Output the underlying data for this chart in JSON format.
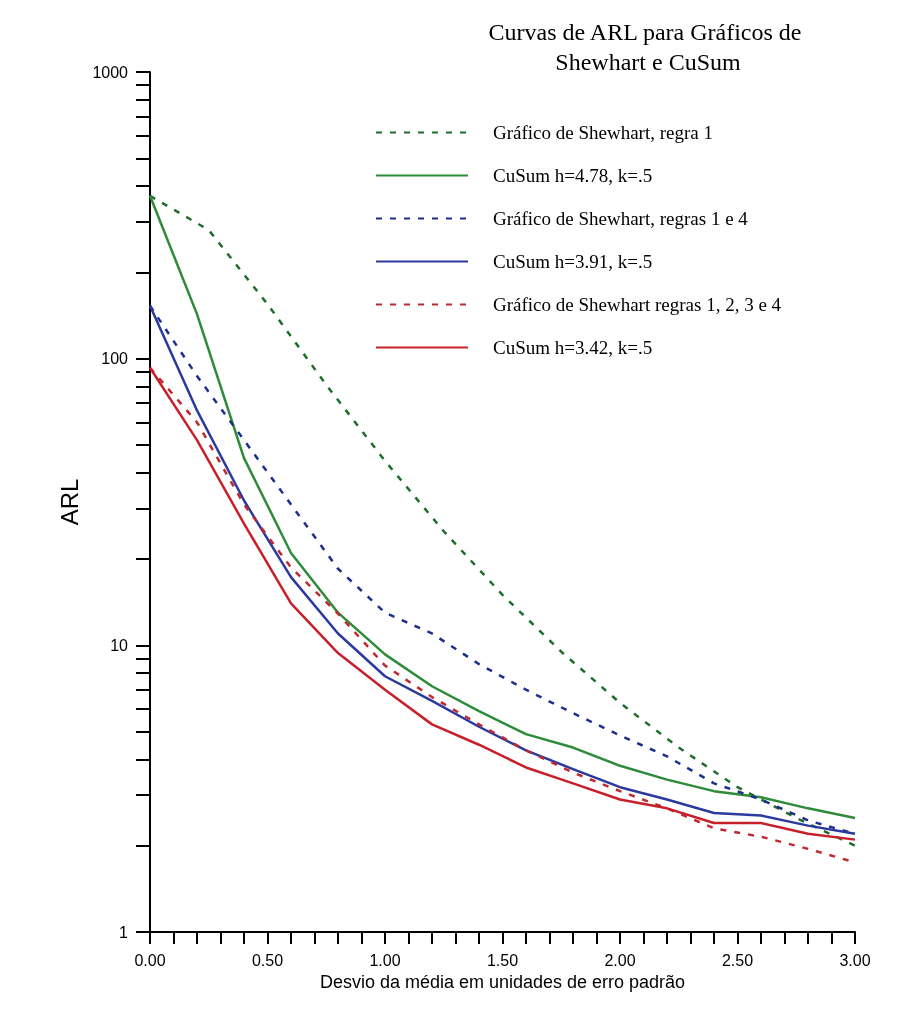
{
  "chart_data": {
    "type": "line",
    "title": "Curvas de ARL para Gráficos de Shewhart e CuSum",
    "xlabel": "Desvio da média em unidades de erro padrão",
    "ylabel": "ARL",
    "log": "y",
    "grid": false,
    "legend": "top right",
    "marker": "none",
    "xlim": [
      0,
      3
    ],
    "ylim": [
      1,
      1000
    ],
    "xticks": [
      {
        "value": 0,
        "label": "0.00"
      },
      {
        "value": 0.1,
        "label": null
      },
      {
        "value": 0.2,
        "label": null
      },
      {
        "value": 0.3,
        "label": null
      },
      {
        "value": 0.4,
        "label": null
      },
      {
        "value": 0.5,
        "label": "0.50"
      },
      {
        "value": 0.6,
        "label": null
      },
      {
        "value": 0.7,
        "label": null
      },
      {
        "value": 0.8,
        "label": null
      },
      {
        "value": 0.9,
        "label": null
      },
      {
        "value": 1,
        "label": "1.00"
      },
      {
        "value": 1.1,
        "label": null
      },
      {
        "value": 1.2,
        "label": null
      },
      {
        "value": 1.3,
        "label": null
      },
      {
        "value": 1.4,
        "label": null
      },
      {
        "value": 1.5,
        "label": "1.50"
      },
      {
        "value": 1.6,
        "label": null
      },
      {
        "value": 1.7,
        "label": null
      },
      {
        "value": 1.8,
        "label": null
      },
      {
        "value": 1.9,
        "label": null
      },
      {
        "value": 2,
        "label": "2.00"
      },
      {
        "value": 2.1,
        "label": null
      },
      {
        "value": 2.2,
        "label": null
      },
      {
        "value": 2.3,
        "label": null
      },
      {
        "value": 2.4,
        "label": null
      },
      {
        "value": 2.5,
        "label": "2.50"
      },
      {
        "value": 2.6,
        "label": null
      },
      {
        "value": 2.7,
        "label": null
      },
      {
        "value": 2.8,
        "label": null
      },
      {
        "value": 2.9,
        "label": null
      },
      {
        "value": 3,
        "label": "3.00"
      }
    ],
    "yticks": [
      1,
      {
        "value": 2,
        "label": null
      },
      {
        "value": 3,
        "label": null
      },
      {
        "value": 4,
        "label": null
      },
      {
        "value": 5,
        "label": null
      },
      {
        "value": 6,
        "label": null
      },
      {
        "value": 7,
        "label": null
      },
      {
        "value": 8,
        "label": null
      },
      {
        "value": 9,
        "label": null
      },
      10,
      {
        "value": 20,
        "label": null
      },
      {
        "value": 30,
        "label": null
      },
      {
        "value": 40,
        "label": null
      },
      {
        "value": 50,
        "label": null
      },
      {
        "value": 60,
        "label": null
      },
      {
        "value": 70,
        "label": null
      },
      {
        "value": 80,
        "label": null
      },
      {
        "value": 90,
        "label": null
      },
      100,
      {
        "value": 200,
        "label": null
      },
      {
        "value": 300,
        "label": null
      },
      {
        "value": 400,
        "label": null
      },
      {
        "value": 500,
        "label": null
      },
      {
        "value": 600,
        "label": null
      },
      {
        "value": 700,
        "label": null
      },
      {
        "value": 800,
        "label": null
      },
      {
        "value": 900,
        "label": null
      },
      1000
    ],
    "series": [
      {
        "name": "Gráfico de Shewhart, regra 1",
        "color": "#1e6e2a",
        "line_style": "dashed",
        "x": [
          0,
          0.25,
          0.5,
          0.75,
          1,
          1.25,
          1.5,
          1.75,
          2,
          2.25,
          2.5,
          2.75,
          3
        ],
        "values": [
          370,
          281,
          155,
          81,
          44,
          25,
          15,
          9.5,
          6.3,
          4.4,
          3.2,
          2.5,
          2.0
        ]
      },
      {
        "name": "CuSum h=4.78, k=.5",
        "color": "#2e8b3a",
        "line_style": "solid",
        "x": [
          0,
          0.2,
          0.4,
          0.6,
          0.8,
          1,
          1.2,
          1.4,
          1.6,
          1.8,
          2,
          2.2,
          2.4,
          2.6,
          2.8,
          3
        ],
        "values": [
          370,
          143,
          45,
          21,
          13,
          9.3,
          7.2,
          5.9,
          4.9,
          4.4,
          3.8,
          3.4,
          3.1,
          2.95,
          2.7,
          2.5
        ]
      },
      {
        "name": "Gráfico de Shewhart, regras 1 e 4",
        "color": "#1c2f8c",
        "line_style": "dashed",
        "x": [
          0,
          0.2,
          0.4,
          0.6,
          0.8,
          1,
          1.2,
          1.4,
          1.6,
          1.8,
          2,
          2.2,
          2.4,
          2.6,
          2.8,
          3
        ],
        "values": [
          153,
          87,
          52,
          31,
          18.5,
          13,
          11,
          8.6,
          7.0,
          5.8,
          4.85,
          4.1,
          3.3,
          2.9,
          2.45,
          2.2
        ]
      },
      {
        "name": "CuSum h=3.91, k=.5",
        "color": "#2a3a9e",
        "line_style": "solid",
        "x": [
          0,
          0.2,
          0.4,
          0.6,
          0.8,
          1,
          1.2,
          1.4,
          1.6,
          1.8,
          2,
          2.2,
          2.4,
          2.6,
          2.8,
          3
        ],
        "values": [
          153,
          66,
          32,
          17.3,
          11,
          7.8,
          6.4,
          5.2,
          4.3,
          3.7,
          3.2,
          2.9,
          2.6,
          2.55,
          2.35,
          2.2
        ]
      },
      {
        "name": "Gráfico de Shewhart regras 1, 2, 3 e 4",
        "color": "#c0282e",
        "line_style": "dashed",
        "x": [
          0,
          0.2,
          0.4,
          0.6,
          0.8,
          1,
          1.2,
          1.4,
          1.6,
          1.8,
          2,
          2.2,
          2.4,
          2.6,
          2.8,
          3
        ],
        "values": [
          93,
          60,
          31,
          18.7,
          12.9,
          8.5,
          6.6,
          5.3,
          4.3,
          3.6,
          3.1,
          2.7,
          2.3,
          2.15,
          1.95,
          1.75
        ]
      },
      {
        "name": "CuSum h=3.42, k=.5",
        "color": "#c8202a",
        "line_style": "solid",
        "x": [
          0,
          0.2,
          0.4,
          0.6,
          0.8,
          1,
          1.2,
          1.4,
          1.6,
          1.8,
          2,
          2.2,
          2.4,
          2.6,
          2.8,
          3
        ],
        "values": [
          93,
          52,
          26.6,
          14,
          9.4,
          7.0,
          5.3,
          4.5,
          3.75,
          3.3,
          2.9,
          2.7,
          2.4,
          2.4,
          2.2,
          2.1
        ]
      }
    ]
  }
}
